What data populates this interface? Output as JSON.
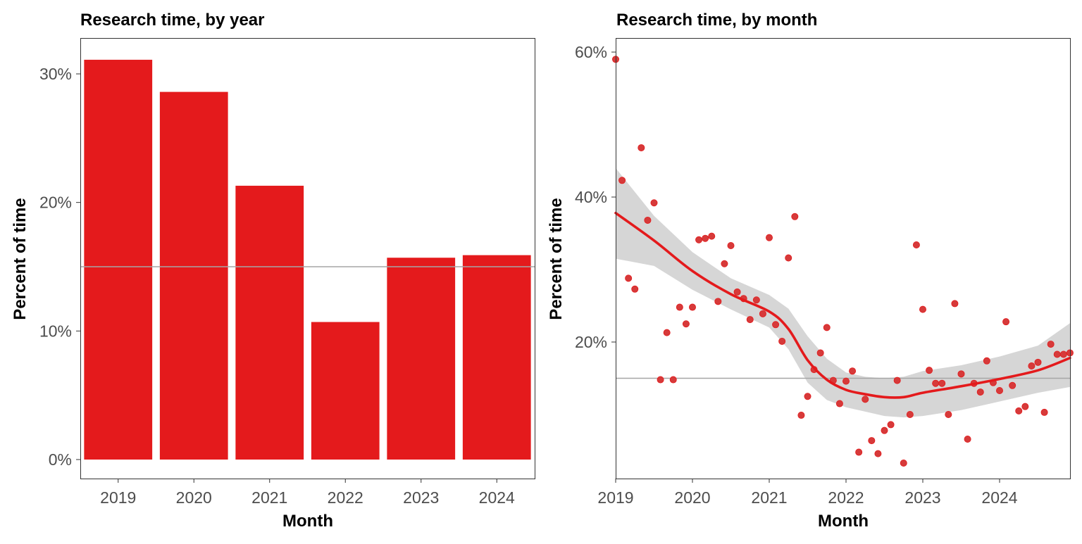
{
  "colors": {
    "accent": "#e41a1c",
    "point": "#d63a3a",
    "ribbon": "#d6d6d6",
    "reference_line": "#a6a6a6",
    "axis_text": "#4d4d4d"
  },
  "chart_data": [
    {
      "type": "bar",
      "title": "Research time, by year",
      "xlabel": "Month",
      "ylabel": "Percent of time",
      "categories": [
        "2019",
        "2020",
        "2021",
        "2022",
        "2023",
        "2024"
      ],
      "values": [
        31.1,
        28.6,
        21.3,
        10.7,
        15.7,
        15.9
      ],
      "ylim": [
        0,
        33
      ],
      "y_ticks": [
        0,
        10,
        20,
        30
      ],
      "y_tick_labels": [
        "0%",
        "10%",
        "20%",
        "30%"
      ],
      "reference_line": 15.0,
      "grid": false
    },
    {
      "type": "scatter",
      "title": "Research time, by month",
      "xlabel": "Month",
      "ylabel": "Percent of time",
      "x_ticks": [
        "2019",
        "2020",
        "2021",
        "2022",
        "2023",
        "2024"
      ],
      "y_ticks": [
        20,
        40,
        60
      ],
      "y_tick_labels": [
        "20%",
        "40%",
        "60%"
      ],
      "xlim": [
        "2019-01",
        "2024-12"
      ],
      "ylim": [
        2.0,
        61.5
      ],
      "reference_line": 15.0,
      "grid": false,
      "points": [
        {
          "x": "2019-01",
          "y": 59.0
        },
        {
          "x": "2019-02",
          "y": 42.3
        },
        {
          "x": "2019-03",
          "y": 28.8
        },
        {
          "x": "2019-04",
          "y": 27.3
        },
        {
          "x": "2019-05",
          "y": 46.8
        },
        {
          "x": "2019-06",
          "y": 36.8
        },
        {
          "x": "2019-07",
          "y": 39.2
        },
        {
          "x": "2019-08",
          "y": 14.8
        },
        {
          "x": "2019-09",
          "y": 21.3
        },
        {
          "x": "2019-10",
          "y": 14.8
        },
        {
          "x": "2019-11",
          "y": 24.8
        },
        {
          "x": "2019-12",
          "y": 22.5
        },
        {
          "x": "2020-01",
          "y": 24.8
        },
        {
          "x": "2020-02",
          "y": 34.1
        },
        {
          "x": "2020-03",
          "y": 34.3
        },
        {
          "x": "2020-04",
          "y": 34.6
        },
        {
          "x": "2020-05",
          "y": 25.6
        },
        {
          "x": "2020-06",
          "y": 30.8
        },
        {
          "x": "2020-07",
          "y": 33.3
        },
        {
          "x": "2020-08",
          "y": 26.9
        },
        {
          "x": "2020-09",
          "y": 26.0
        },
        {
          "x": "2020-10",
          "y": 23.1
        },
        {
          "x": "2020-11",
          "y": 25.8
        },
        {
          "x": "2020-12",
          "y": 23.9
        },
        {
          "x": "2021-01",
          "y": 34.4
        },
        {
          "x": "2021-02",
          "y": 22.4
        },
        {
          "x": "2021-03",
          "y": 20.1
        },
        {
          "x": "2021-04",
          "y": 31.6
        },
        {
          "x": "2021-05",
          "y": 37.3
        },
        {
          "x": "2021-06",
          "y": 9.9
        },
        {
          "x": "2021-07",
          "y": 12.5
        },
        {
          "x": "2021-08",
          "y": 16.2
        },
        {
          "x": "2021-09",
          "y": 18.5
        },
        {
          "x": "2021-10",
          "y": 22.0
        },
        {
          "x": "2021-11",
          "y": 14.7
        },
        {
          "x": "2021-12",
          "y": 11.5
        },
        {
          "x": "2022-01",
          "y": 14.6
        },
        {
          "x": "2022-02",
          "y": 16.0
        },
        {
          "x": "2022-03",
          "y": 4.8
        },
        {
          "x": "2022-04",
          "y": 12.1
        },
        {
          "x": "2022-05",
          "y": 6.4
        },
        {
          "x": "2022-06",
          "y": 4.6
        },
        {
          "x": "2022-07",
          "y": 7.8
        },
        {
          "x": "2022-08",
          "y": 8.6
        },
        {
          "x": "2022-09",
          "y": 14.7
        },
        {
          "x": "2022-10",
          "y": 3.3
        },
        {
          "x": "2022-11",
          "y": 10.0
        },
        {
          "x": "2022-12",
          "y": 33.4
        },
        {
          "x": "2023-01",
          "y": 24.5
        },
        {
          "x": "2023-02",
          "y": 16.1
        },
        {
          "x": "2023-03",
          "y": 14.3
        },
        {
          "x": "2023-04",
          "y": 14.3
        },
        {
          "x": "2023-05",
          "y": 10.0
        },
        {
          "x": "2023-06",
          "y": 25.3
        },
        {
          "x": "2023-07",
          "y": 15.6
        },
        {
          "x": "2023-08",
          "y": 6.6
        },
        {
          "x": "2023-09",
          "y": 14.3
        },
        {
          "x": "2023-10",
          "y": 13.1
        },
        {
          "x": "2023-11",
          "y": 17.4
        },
        {
          "x": "2023-12",
          "y": 14.4
        },
        {
          "x": "2024-01",
          "y": 13.3
        },
        {
          "x": "2024-02",
          "y": 22.8
        },
        {
          "x": "2024-03",
          "y": 14.0
        },
        {
          "x": "2024-04",
          "y": 10.5
        },
        {
          "x": "2024-05",
          "y": 11.1
        },
        {
          "x": "2024-06",
          "y": 16.7
        },
        {
          "x": "2024-07",
          "y": 17.2
        },
        {
          "x": "2024-08",
          "y": 10.3
        },
        {
          "x": "2024-09",
          "y": 19.7
        },
        {
          "x": "2024-10",
          "y": 18.3
        },
        {
          "x": "2024-11",
          "y": 18.3
        },
        {
          "x": "2024-12",
          "y": 18.5
        }
      ],
      "trend": {
        "method": "smooth",
        "x": [
          "2019-01",
          "2019-07",
          "2020-01",
          "2020-07",
          "2021-01",
          "2021-04",
          "2021-07",
          "2021-10",
          "2022-01",
          "2022-04",
          "2022-07",
          "2022-10",
          "2023-01",
          "2023-07",
          "2024-01",
          "2024-07",
          "2024-12"
        ],
        "y": [
          37.8,
          34.0,
          29.8,
          26.6,
          24.2,
          21.8,
          17.5,
          14.8,
          13.4,
          12.8,
          12.4,
          12.4,
          13.0,
          13.9,
          14.9,
          16.1,
          17.8
        ],
        "lower": [
          31.5,
          30.5,
          27.2,
          24.5,
          22.0,
          19.0,
          14.4,
          12.0,
          11.0,
          10.4,
          9.8,
          9.6,
          9.8,
          10.6,
          11.8,
          13.0,
          13.8
        ],
        "upper": [
          44.0,
          37.4,
          32.4,
          28.8,
          26.5,
          24.6,
          20.8,
          17.7,
          15.8,
          15.2,
          15.0,
          15.2,
          16.0,
          16.8,
          18.0,
          19.5,
          22.6
        ]
      }
    }
  ]
}
